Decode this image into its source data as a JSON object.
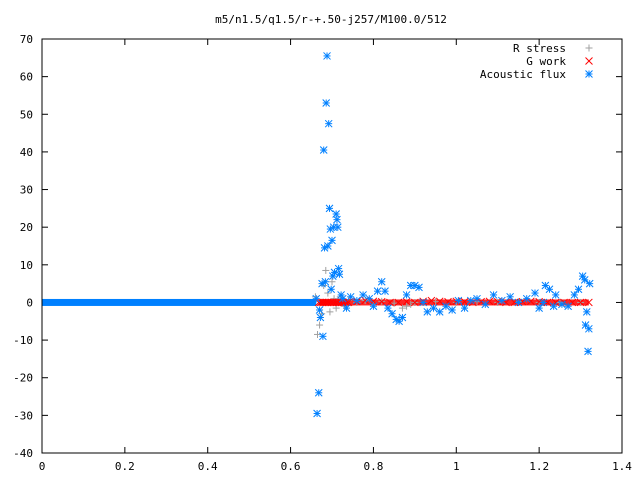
{
  "chart_data": {
    "type": "scatter",
    "title": "m5/n1.5/q1.5/r-+.50-j257/M100.0/512",
    "xlabel": "",
    "ylabel": "",
    "xlim": [
      0,
      1.4
    ],
    "ylim": [
      -40,
      70
    ],
    "x_ticks": [
      "0",
      "0.2",
      "0.4",
      "0.6",
      "0.8",
      "1",
      "1.2",
      "1.4"
    ],
    "y_ticks": [
      "-40",
      "-30",
      "-20",
      "-10",
      "0",
      "10",
      "20",
      "30",
      "40",
      "50",
      "60",
      "70"
    ],
    "legend_position": "top-right",
    "series": [
      {
        "name": "R stress",
        "marker": "plus",
        "color": "#a0a0a0",
        "points": [
          [
            0.66,
            1.5
          ],
          [
            0.665,
            -8.5
          ],
          [
            0.67,
            -6.0
          ],
          [
            0.675,
            -3.0
          ],
          [
            0.68,
            4.5
          ],
          [
            0.685,
            8.5
          ],
          [
            0.69,
            2.5
          ],
          [
            0.695,
            -2.5
          ],
          [
            0.7,
            5.5
          ],
          [
            0.705,
            1.0
          ],
          [
            0.71,
            -1.5
          ],
          [
            0.715,
            0.5
          ],
          [
            0.72,
            1.5
          ],
          [
            0.73,
            -1.0
          ],
          [
            0.74,
            0.5
          ],
          [
            0.76,
            0.0
          ],
          [
            0.78,
            0.5
          ],
          [
            0.8,
            -0.5
          ],
          [
            0.82,
            0.3
          ],
          [
            0.85,
            -0.2
          ],
          [
            0.87,
            -1.5
          ],
          [
            0.88,
            -1.0
          ],
          [
            0.89,
            -0.5
          ],
          [
            0.9,
            0.0
          ],
          [
            0.95,
            0.2
          ],
          [
            1.0,
            0.0
          ],
          [
            1.05,
            0.2
          ],
          [
            1.1,
            0.0
          ],
          [
            1.15,
            0.2
          ],
          [
            1.2,
            0.0
          ],
          [
            1.25,
            0.0
          ],
          [
            1.3,
            0.0
          ]
        ]
      },
      {
        "name": "G work",
        "marker": "cross",
        "color": "#ff0000",
        "points": [
          [
            0.668,
            0.0
          ],
          [
            0.672,
            0.0
          ],
          [
            0.676,
            0.0
          ],
          [
            0.68,
            0.0
          ],
          [
            0.684,
            0.0
          ],
          [
            0.688,
            0.0
          ],
          [
            0.692,
            0.0
          ],
          [
            0.696,
            0.0
          ],
          [
            0.7,
            0.0
          ],
          [
            0.704,
            0.0
          ],
          [
            0.708,
            0.0
          ],
          [
            0.712,
            0.0
          ],
          [
            0.716,
            0.0
          ],
          [
            0.72,
            0.0
          ],
          [
            0.724,
            0.0
          ],
          [
            0.728,
            0.0
          ],
          [
            0.732,
            0.0
          ],
          [
            0.736,
            0.0
          ],
          [
            0.74,
            0.0
          ],
          [
            0.76,
            0.2
          ],
          [
            0.78,
            0.5
          ],
          [
            0.8,
            0.3
          ],
          [
            0.82,
            0.2
          ],
          [
            0.84,
            0.0
          ],
          [
            0.86,
            0.0
          ],
          [
            0.88,
            0.2
          ],
          [
            0.9,
            0.0
          ],
          [
            0.92,
            0.3
          ],
          [
            0.94,
            0.5
          ],
          [
            0.96,
            0.3
          ],
          [
            0.98,
            0.2
          ],
          [
            1.0,
            0.3
          ],
          [
            1.02,
            0.2
          ],
          [
            1.04,
            0.0
          ],
          [
            1.06,
            0.2
          ],
          [
            1.08,
            0.3
          ],
          [
            1.1,
            0.2
          ],
          [
            1.12,
            0.0
          ],
          [
            1.14,
            0.0
          ],
          [
            1.16,
            0.2
          ],
          [
            1.18,
            0.3
          ],
          [
            1.2,
            0.2
          ],
          [
            1.22,
            0.0
          ],
          [
            1.24,
            0.0
          ],
          [
            1.26,
            0.0
          ],
          [
            1.28,
            0.0
          ],
          [
            1.3,
            0.0
          ],
          [
            1.32,
            0.0
          ]
        ]
      },
      {
        "name": "Acoustic flux",
        "marker": "asterisk",
        "color": "#0080ff",
        "points": [
          [
            0.662,
            1.0
          ],
          [
            0.664,
            -29.5
          ],
          [
            0.668,
            -24.0
          ],
          [
            0.67,
            -2.0
          ],
          [
            0.672,
            -4.0
          ],
          [
            0.676,
            5.0
          ],
          [
            0.678,
            -9.0
          ],
          [
            0.68,
            40.5
          ],
          [
            0.682,
            14.5
          ],
          [
            0.684,
            5.5
          ],
          [
            0.686,
            53.0
          ],
          [
            0.688,
            65.5
          ],
          [
            0.69,
            15.0
          ],
          [
            0.692,
            47.5
          ],
          [
            0.694,
            25.0
          ],
          [
            0.696,
            19.5
          ],
          [
            0.698,
            3.5
          ],
          [
            0.7,
            16.5
          ],
          [
            0.702,
            7.0
          ],
          [
            0.704,
            20.0
          ],
          [
            0.706,
            8.0
          ],
          [
            0.71,
            23.5
          ],
          [
            0.712,
            22.0
          ],
          [
            0.714,
            20.0
          ],
          [
            0.716,
            9.0
          ],
          [
            0.718,
            7.5
          ],
          [
            0.722,
            2.0
          ],
          [
            0.726,
            1.0
          ],
          [
            0.735,
            -1.5
          ],
          [
            0.745,
            1.5
          ],
          [
            0.76,
            0.5
          ],
          [
            0.775,
            2.0
          ],
          [
            0.79,
            1.0
          ],
          [
            0.8,
            -1.0
          ],
          [
            0.81,
            3.0
          ],
          [
            0.82,
            5.5
          ],
          [
            0.828,
            3.0
          ],
          [
            0.835,
            -1.5
          ],
          [
            0.845,
            -3.0
          ],
          [
            0.855,
            -4.5
          ],
          [
            0.862,
            -5.0
          ],
          [
            0.87,
            -4.0
          ],
          [
            0.88,
            2.0
          ],
          [
            0.89,
            4.5
          ],
          [
            0.9,
            4.5
          ],
          [
            0.91,
            4.0
          ],
          [
            0.92,
            0.0
          ],
          [
            0.93,
            -2.5
          ],
          [
            0.945,
            -1.5
          ],
          [
            0.96,
            -2.5
          ],
          [
            0.975,
            -1.0
          ],
          [
            0.99,
            -2.0
          ],
          [
            1.005,
            0.5
          ],
          [
            1.02,
            -1.5
          ],
          [
            1.035,
            0.5
          ],
          [
            1.05,
            1.0
          ],
          [
            1.07,
            -0.5
          ],
          [
            1.09,
            2.0
          ],
          [
            1.11,
            0.5
          ],
          [
            1.13,
            1.5
          ],
          [
            1.15,
            0.0
          ],
          [
            1.17,
            1.0
          ],
          [
            1.19,
            2.5
          ],
          [
            1.2,
            -1.5
          ],
          [
            1.21,
            0.0
          ],
          [
            1.215,
            4.5
          ],
          [
            1.225,
            3.5
          ],
          [
            1.235,
            -1.0
          ],
          [
            1.24,
            2.0
          ],
          [
            1.255,
            -0.5
          ],
          [
            1.27,
            -1.0
          ],
          [
            1.285,
            2.0
          ],
          [
            1.295,
            3.5
          ],
          [
            1.305,
            7.0
          ],
          [
            1.31,
            6.0
          ],
          [
            1.312,
            -6.0
          ],
          [
            1.315,
            -2.5
          ],
          [
            1.318,
            -13.0
          ],
          [
            1.32,
            -7.0
          ],
          [
            1.322,
            5.0
          ]
        ]
      }
    ]
  }
}
